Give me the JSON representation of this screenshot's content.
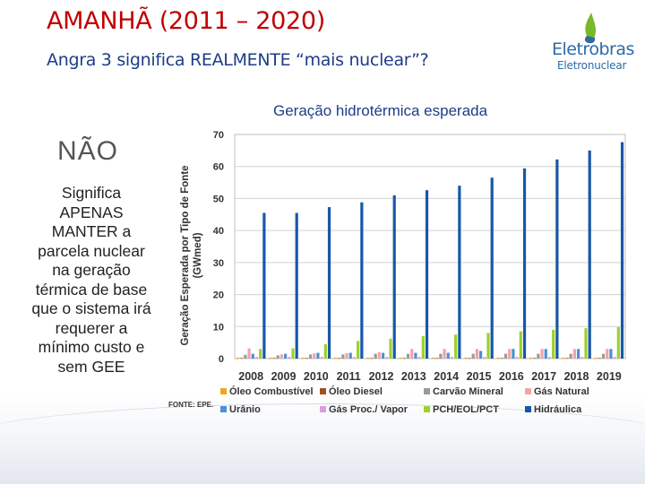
{
  "slide": {
    "title": "AMANHÃ (2011 – 2020)",
    "subtitle": "Angra 3 significa REALMENTE “mais nuclear”?",
    "nao": "NÃO",
    "body_lines": [
      "Significa",
      "APENAS",
      "MANTER a",
      "parcela nuclear",
      "na geração",
      "térmica de base",
      "que o sistema irá",
      "requerer a",
      "mínimo custo e",
      "sem GEE"
    ],
    "chart_heading": "Geração hidrotérmica esperada",
    "source": "FONTE: EPE."
  },
  "logo": {
    "name": "Eletrobras",
    "sub": "Eletronuclear",
    "icon": "eletrobras-flame-icon",
    "colors": {
      "green": "#78b82a",
      "blue": "#2c6aa7"
    }
  },
  "chart_data": {
    "type": "bar",
    "ylabel": "Geração Esperada por Tipo de Fonte (GWmed)",
    "ylim": [
      0,
      70
    ],
    "yticks": [
      0,
      10,
      20,
      30,
      40,
      50,
      60,
      70
    ],
    "grid": true,
    "legend_position": "bottom",
    "categories": [
      "2008",
      "2009",
      "2010",
      "2011",
      "2012",
      "2013",
      "2014",
      "2015",
      "2016",
      "2017",
      "2018",
      "2019"
    ],
    "series": [
      {
        "name": "Óleo Combustível",
        "color": "#f0a81b",
        "values": [
          0.3,
          0.3,
          0.3,
          0.3,
          0.3,
          0.3,
          0.3,
          0.3,
          0.3,
          0.3,
          0.3,
          0.3
        ]
      },
      {
        "name": "Óleo Diesel",
        "color": "#a0521c",
        "values": [
          0.2,
          0.2,
          0.2,
          0.2,
          0.2,
          0.2,
          0.2,
          0.2,
          0.2,
          0.2,
          0.2,
          0.2
        ]
      },
      {
        "name": "Carvão Mineral",
        "color": "#9a9a9a",
        "values": [
          1.2,
          1.0,
          1.3,
          1.3,
          1.5,
          1.5,
          1.5,
          1.5,
          1.5,
          1.5,
          1.5,
          1.5
        ]
      },
      {
        "name": "Gás Natural",
        "color": "#f4a3a3",
        "values": [
          3.2,
          1.3,
          1.6,
          1.7,
          2.0,
          3.0,
          3.0,
          3.0,
          3.0,
          3.0,
          3.0,
          3.0
        ]
      },
      {
        "name": "Urânio",
        "color": "#4e8fd6",
        "values": [
          1.5,
          1.5,
          1.8,
          1.8,
          1.8,
          1.8,
          1.8,
          2.4,
          3.0,
          3.0,
          3.0,
          3.0
        ]
      },
      {
        "name": "Gás Proc./ Vapor",
        "color": "#d99de0",
        "values": [
          0.5,
          0.5,
          0.5,
          0.5,
          0.5,
          0.5,
          0.5,
          0.5,
          0.5,
          0.5,
          0.5,
          0.5
        ]
      },
      {
        "name": "PCH/EOL/PCT",
        "color": "#9bd12b",
        "values": [
          3.0,
          3.2,
          4.5,
          5.5,
          6.2,
          7.0,
          7.5,
          8.0,
          8.5,
          9.0,
          9.5,
          9.8
        ]
      },
      {
        "name": "Hidráulica",
        "color": "#1857a8",
        "values": [
          45.5,
          45.5,
          47.3,
          48.8,
          51.0,
          52.6,
          54.0,
          56.5,
          59.4,
          62.2,
          65.0,
          67.6
        ]
      }
    ]
  }
}
